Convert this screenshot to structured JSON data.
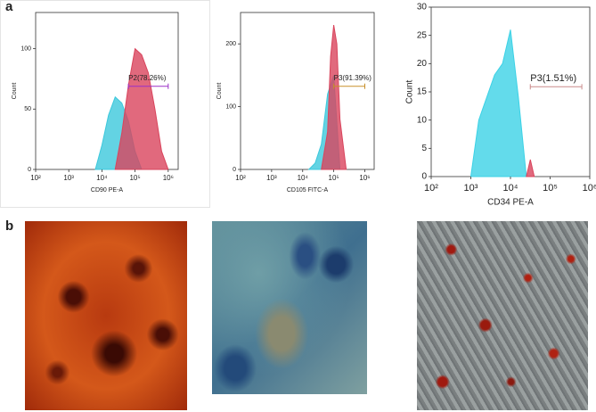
{
  "panel_labels": [
    "a",
    "b"
  ],
  "chart_data": [
    {
      "type": "histogram-area",
      "xscale": "log",
      "xlabel": "CD90 PE-A",
      "ylabel": "Count",
      "xlim": [
        100,
        2000000
      ],
      "ylim": [
        0,
        130
      ],
      "xticks": [
        {
          "value": 100,
          "label": "10²"
        },
        {
          "value": 1000,
          "label": "10³"
        },
        {
          "value": 10000,
          "label": "10⁴"
        },
        {
          "value": 100000,
          "label": "10⁵"
        },
        {
          "value": 1000000,
          "label": "10⁶"
        }
      ],
      "yticks": [
        0,
        50,
        100
      ],
      "series": [
        {
          "color": "#3cc8dc",
          "x": [
            6310,
            10000,
            15849,
            25119,
            39811,
            63096,
            100000,
            158489
          ],
          "values": [
            0,
            20,
            45,
            60,
            55,
            40,
            15,
            0
          ]
        },
        {
          "color": "#d9445c",
          "x": [
            25119,
            39811,
            63096,
            100000,
            158489,
            251189,
            398107,
            630957,
            1000000
          ],
          "values": [
            0,
            30,
            70,
            100,
            95,
            80,
            50,
            15,
            0
          ]
        }
      ],
      "gate": {
        "label": "P2(78.26%)",
        "range": [
          63096,
          1000000
        ],
        "color": "#9b30c8"
      }
    },
    {
      "type": "histogram-area",
      "xscale": "log",
      "xlabel": "CD105 FITC-A",
      "ylabel": "Count",
      "xlim": [
        100,
        2000000
      ],
      "ylim": [
        0,
        250
      ],
      "xticks": [
        {
          "value": 100,
          "label": "10²"
        },
        {
          "value": 1000,
          "label": "10³"
        },
        {
          "value": 10000,
          "label": "10⁴"
        },
        {
          "value": 100000,
          "label": "10⁵"
        },
        {
          "value": 1000000,
          "label": "10⁶"
        }
      ],
      "yticks": [
        0,
        100,
        200
      ],
      "series": [
        {
          "color": "#3cc8dc",
          "x": [
            15849,
            25119,
            39811,
            63096,
            100000,
            158489
          ],
          "values": [
            0,
            10,
            40,
            120,
            150,
            0
          ]
        },
        {
          "color": "#d9445c",
          "x": [
            39811,
            63096,
            79433,
            100000,
            125893,
            158489,
            251189
          ],
          "values": [
            0,
            60,
            180,
            230,
            200,
            80,
            0
          ]
        }
      ],
      "gate": {
        "label": "P3(91.39%)",
        "range": [
          100000,
          1000000
        ],
        "color": "#c8902a"
      }
    },
    {
      "type": "histogram-area",
      "xscale": "log",
      "xlabel": "CD34 PE-A",
      "ylabel": "Count",
      "xlim": [
        100,
        1000000
      ],
      "ylim": [
        0,
        30
      ],
      "xticks": [
        {
          "value": 100,
          "label": "10²"
        },
        {
          "value": 1000,
          "label": "10³"
        },
        {
          "value": 10000,
          "label": "10⁴"
        },
        {
          "value": 100000,
          "label": "10⁵"
        },
        {
          "value": 1000000,
          "label": "10⁶"
        }
      ],
      "yticks": [
        0,
        5,
        10,
        15,
        20,
        25,
        30
      ],
      "series": [
        {
          "color": "#3cd2e6",
          "x": [
            1000,
            1585,
            2512,
            3981,
            6310,
            10000,
            15849,
            25119
          ],
          "values": [
            0,
            10,
            14,
            18,
            20,
            26,
            14,
            0
          ]
        },
        {
          "color": "#d9445c",
          "x": [
            25119,
            31623,
            39811
          ],
          "values": [
            0,
            3,
            0
          ]
        }
      ],
      "gate": {
        "label": "P3(1.51%)",
        "range": [
          31623,
          630957
        ],
        "color": "#c98a8a"
      }
    }
  ]
}
